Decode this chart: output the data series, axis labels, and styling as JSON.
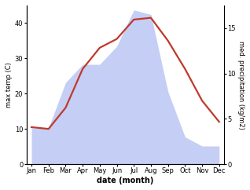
{
  "months": [
    "Jan",
    "Feb",
    "Mar",
    "Apr",
    "May",
    "Jun",
    "Jul",
    "Aug",
    "Sep",
    "Oct",
    "Nov",
    "Dec"
  ],
  "temperature": [
    10.5,
    10.0,
    16.0,
    27.0,
    33.0,
    35.5,
    41.0,
    41.5,
    35.0,
    27.0,
    18.0,
    12.0
  ],
  "precipitation": [
    4.0,
    4.0,
    9.0,
    11.0,
    11.0,
    13.0,
    17.0,
    16.5,
    8.0,
    3.0,
    2.0,
    2.0
  ],
  "temp_color": "#c0392b",
  "precip_fill_color": "#c5cef5",
  "precip_edge_color": "#b0bce8",
  "temp_ylim": [
    0,
    45
  ],
  "precip_ylim": [
    0,
    17.5
  ],
  "temp_yticks": [
    0,
    10,
    20,
    30,
    40
  ],
  "precip_yticks": [
    0,
    5,
    10,
    15
  ],
  "ylabel_left": "max temp (C)",
  "ylabel_right": "med. precipitation (kg/m2)",
  "xlabel": "date (month)",
  "bg_color": "#ffffff",
  "line_width": 1.6,
  "tick_labelsize": 6,
  "xlabel_fontsize": 7,
  "ylabel_fontsize": 6
}
